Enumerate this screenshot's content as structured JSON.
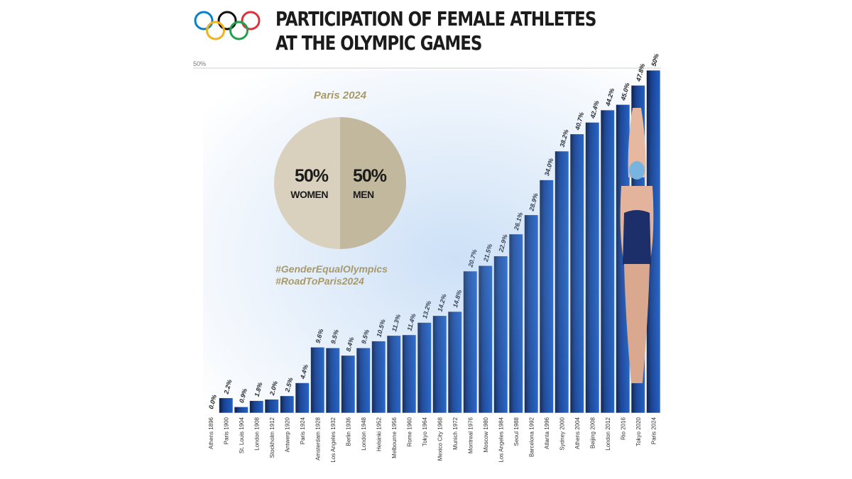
{
  "header": {
    "title_line1": "PARTICIPATION OF FEMALE ATHLETES",
    "title_line2": "AT THE OLYMPIC GAMES",
    "logo": "olympic-rings-icon"
  },
  "pie_panel": {
    "heading": "Paris 2024",
    "women_pct": "50%",
    "women_label": "WOMEN",
    "men_pct": "50%",
    "men_label": "MEN",
    "hashtag1": "#GenderEqualOlympics",
    "hashtag2": "#RoadToParis2024"
  },
  "colors": {
    "women": "#d9d0be",
    "men": "#c2b89d",
    "accent": "#a8996b",
    "bar_dark": "#0c1a3d",
    "bar_blue": "#1f5fc7"
  },
  "chart_data": [
    {
      "type": "bar",
      "axis_label": "50%",
      "ylim": [
        0,
        50
      ],
      "categories": [
        "Athens 1896",
        "Paris 1900",
        "St. Louis 1904",
        "London 1908",
        "Stockholm 1912",
        "Antwerp 1920",
        "Paris 1924",
        "Amsterdam 1928",
        "Los Angeles 1932",
        "Berlin 1936",
        "London 1948",
        "Helsinki 1952",
        "Melbourne 1956",
        "Rome 1960",
        "Tokyo 1964",
        "Mexico City 1968",
        "Munich 1972",
        "Montreal 1976",
        "Moscow 1980",
        "Los Angeles 1984",
        "Seoul 1988",
        "Barcelona 1992",
        "Atlanta 1996",
        "Sydney 2000",
        "Athens 2004",
        "Beijing 2008",
        "London 2012",
        "Rio 2016",
        "Tokyo 2020",
        "Paris 2024"
      ],
      "values": [
        0.0,
        2.2,
        0.9,
        1.8,
        2.0,
        2.5,
        4.4,
        9.6,
        9.5,
        8.4,
        9.5,
        10.5,
        11.3,
        11.4,
        13.2,
        14.2,
        14.8,
        20.7,
        21.5,
        22.9,
        26.1,
        28.9,
        34.0,
        38.2,
        40.7,
        42.4,
        44.2,
        45.0,
        47.8,
        50
      ],
      "value_labels": [
        "0.0%",
        "2.2%",
        "0.9%",
        "1.8%",
        "2.0%",
        "2.5%",
        "4.4%",
        "9.6%",
        "9.5%",
        "8.4%",
        "9.5%",
        "10.5%",
        "11.3%",
        "11.4%",
        "13.2%",
        "14.2%",
        "14.8%",
        "20.7%",
        "21.5%",
        "22.9%",
        "26.1%",
        "28.9%",
        "34.0%",
        "38.2%",
        "40.7%",
        "42.4%",
        "44.2%",
        "45.0%",
        "47.8%",
        "50%"
      ]
    },
    {
      "type": "pie",
      "title": "Paris 2024",
      "labels": [
        "WOMEN",
        "MEN"
      ],
      "values": [
        50,
        50
      ]
    }
  ]
}
